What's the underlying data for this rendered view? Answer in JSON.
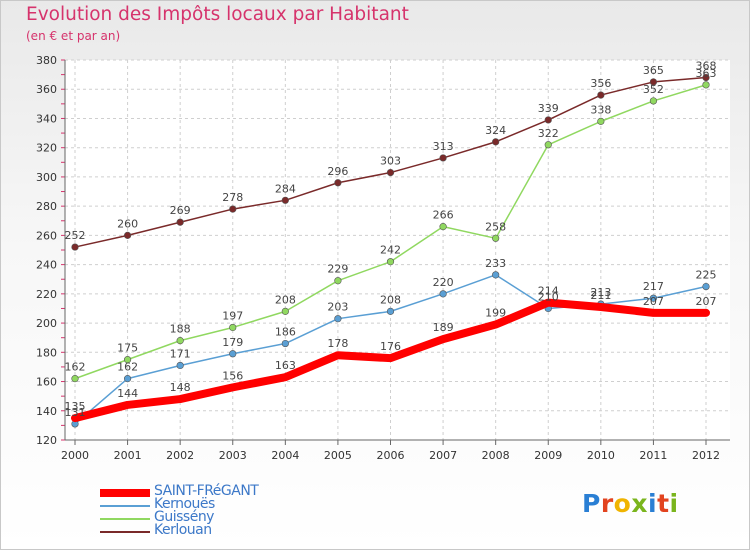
{
  "title": "Evolution des Impôts locaux par Habitant",
  "subtitle": "(en € et par an)",
  "logo": {
    "text": "Proxiti",
    "letter_colors": [
      "#2a7fd4",
      "#e2431f",
      "#f0b400",
      "#7ab51d",
      "#2a7fd4",
      "#e2431f",
      "#7ab51d"
    ]
  },
  "chart_data": {
    "type": "line",
    "x": [
      "2000",
      "2001",
      "2002",
      "2003",
      "2004",
      "2005",
      "2006",
      "2007",
      "2008",
      "2009",
      "2010",
      "2011",
      "2012"
    ],
    "ylim": [
      120,
      380
    ],
    "yticks": [
      120,
      140,
      160,
      180,
      200,
      220,
      240,
      260,
      280,
      300,
      320,
      340,
      360,
      380
    ],
    "grid": true,
    "legend_position": "bottom-left",
    "series": [
      {
        "name": "SAINT-FRéGANT",
        "color": "#ff0000",
        "values": [
          135,
          144,
          148,
          156,
          163,
          178,
          176,
          189,
          199,
          214,
          211,
          207,
          207
        ],
        "labels": [
          "135",
          "144",
          "148",
          "156",
          "163",
          "178",
          "176",
          "189",
          "199",
          "214",
          "211",
          "207",
          "207"
        ]
      },
      {
        "name": "Kernouës",
        "color": "#5a9fd4",
        "values": [
          131,
          162,
          171,
          179,
          186,
          203,
          208,
          220,
          233,
          210,
          213,
          217,
          225
        ],
        "labels": [
          "131",
          "162",
          "171",
          "179",
          "186",
          "203",
          "208",
          "220",
          "233",
          "210",
          "213",
          "217",
          "225"
        ]
      },
      {
        "name": "Guissény",
        "color": "#90d860",
        "values": [
          162,
          175,
          188,
          197,
          208,
          229,
          242,
          266,
          258,
          322,
          338,
          352,
          363
        ],
        "labels": [
          "162",
          "175",
          "188",
          "197",
          "208",
          "229",
          "242",
          "266",
          "258",
          "322",
          "338",
          "352",
          "363"
        ]
      },
      {
        "name": "Kerlouan",
        "color": "#7a2a2a",
        "values": [
          252,
          260,
          269,
          278,
          284,
          296,
          303,
          313,
          324,
          339,
          356,
          365,
          368
        ],
        "labels": [
          "252",
          "260",
          "269",
          "278",
          "284",
          "296",
          "303",
          "313",
          "324",
          "339",
          "356",
          "365",
          "368"
        ]
      }
    ]
  }
}
